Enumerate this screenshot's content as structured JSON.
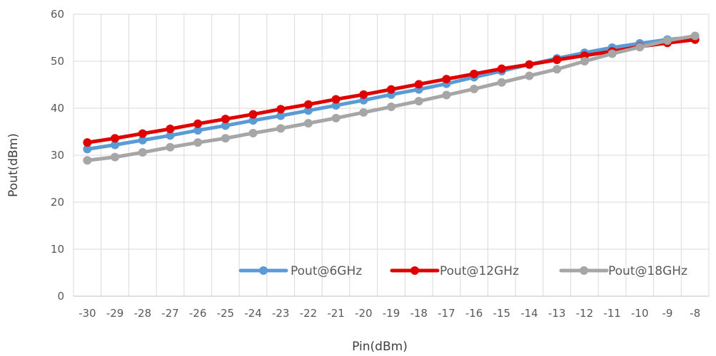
{
  "chart_data": {
    "type": "line",
    "title": "",
    "xlabel": "Pin(dBm)",
    "ylabel": "Pout(dBm)",
    "x": [
      -30,
      -29,
      -28,
      -27,
      -26,
      -25,
      -24,
      -23,
      -22,
      -21,
      -20,
      -19,
      -18,
      -17,
      -16,
      -15,
      -14,
      -13,
      -12,
      -11,
      -10,
      -9,
      -8
    ],
    "x_tick_labels": [
      "-30",
      "-29",
      "-28",
      "-27",
      "-26",
      "-25",
      "-24",
      "-23",
      "-22",
      "-21",
      "-20",
      "-19",
      "-18",
      "-17",
      "-16",
      "-15",
      "-14",
      "-13",
      "-12",
      "-11",
      "-10",
      "-9",
      "-8"
    ],
    "y_ticks": [
      0,
      10,
      20,
      30,
      40,
      50,
      60
    ],
    "y_tick_labels": [
      "0",
      "10",
      "20",
      "30",
      "40",
      "50",
      "60"
    ],
    "ylim": [
      0,
      60
    ],
    "grid": true,
    "legend_position": "bottom-right",
    "series": [
      {
        "name": "Pout@6GHz",
        "color": "#5B9BD5",
        "values": [
          31.3,
          32.2,
          33.2,
          34.2,
          35.3,
          36.3,
          37.4,
          38.4,
          39.5,
          40.6,
          41.7,
          42.9,
          44.0,
          45.2,
          46.6,
          47.9,
          49.3,
          50.6,
          51.8,
          52.9,
          53.8,
          54.6,
          55.2
        ]
      },
      {
        "name": "Pout@12GHz",
        "color": "#E00000",
        "values": [
          32.7,
          33.6,
          34.6,
          35.6,
          36.7,
          37.7,
          38.7,
          39.8,
          40.8,
          41.9,
          42.9,
          44.0,
          45.1,
          46.2,
          47.3,
          48.4,
          49.3,
          50.3,
          51.2,
          52.1,
          53.1,
          53.9,
          54.6
        ]
      },
      {
        "name": "Pout@18GHz",
        "color": "#A6A6A6",
        "values": [
          28.9,
          29.6,
          30.6,
          31.7,
          32.7,
          33.6,
          34.7,
          35.7,
          36.8,
          37.9,
          39.1,
          40.3,
          41.5,
          42.8,
          44.1,
          45.5,
          46.9,
          48.3,
          50.0,
          51.6,
          53.0,
          54.4,
          55.4
        ]
      }
    ]
  }
}
